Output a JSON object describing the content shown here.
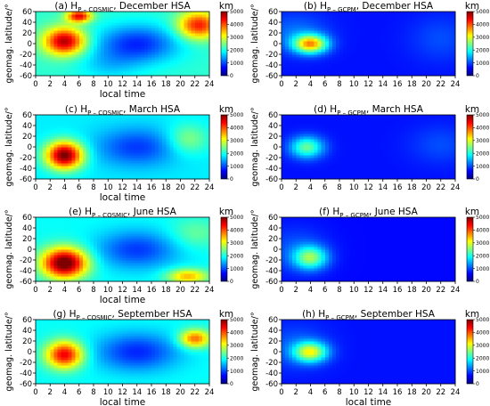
{
  "colors": {
    "jet": [
      "#00007f",
      "#0000ff",
      "#007fff",
      "#00ffff",
      "#7fff7f",
      "#ffff00",
      "#ff7f00",
      "#ff0000",
      "#7f0000"
    ]
  },
  "chart_data": [
    {
      "type": "heatmap",
      "title": "(a) H",
      "subscript": "P – COSMIC",
      "title_rest": ", December HSA",
      "xlabel": "local time",
      "ylabel": "geomag. latitude/°",
      "colorbar_label": "km",
      "x_ticks": [
        0,
        2,
        4,
        6,
        8,
        10,
        12,
        14,
        16,
        18,
        20,
        22,
        24
      ],
      "y_ticks": [
        -60,
        -40,
        -20,
        0,
        20,
        40,
        60
      ],
      "colorbar_ticks": [
        0,
        1000,
        2000,
        3000,
        4000,
        5000
      ],
      "xlim": [
        0,
        24
      ],
      "ylim": [
        -60,
        60
      ],
      "clim": [
        0,
        5000
      ],
      "field": {
        "base": 2100,
        "blobs": [
          {
            "x": 4,
            "y": 5,
            "sx": 2.0,
            "sy": 18,
            "amp": 2700
          },
          {
            "x": 6,
            "y": 52,
            "sx": 1.2,
            "sy": 8,
            "amp": 2400
          },
          {
            "x": 22.5,
            "y": 35,
            "sx": 2.0,
            "sy": 18,
            "amp": 2200
          },
          {
            "x": 14,
            "y": 0,
            "sx": 4.0,
            "sy": 25,
            "amp": -1300
          },
          {
            "x": 10,
            "y": -40,
            "sx": 3.0,
            "sy": 20,
            "amp": -400
          }
        ]
      }
    },
    {
      "type": "heatmap",
      "title": "(b) H",
      "subscript": "P – GCPM",
      "title_rest": ", December HSA",
      "xlabel": "",
      "ylabel": "",
      "colorbar_label": "km",
      "x_ticks": [
        0,
        2,
        4,
        6,
        8,
        10,
        12,
        14,
        16,
        18,
        20,
        22,
        24
      ],
      "y_ticks": [
        -60,
        -40,
        -20,
        0,
        20,
        40,
        60
      ],
      "colorbar_ticks": [
        0,
        1000,
        2000,
        3000,
        4000,
        5000
      ],
      "xlim": [
        0,
        24
      ],
      "ylim": [
        -60,
        60
      ],
      "clim": [
        0,
        5000
      ],
      "field": {
        "base": 700,
        "blobs": [
          {
            "x": 4,
            "y": 0,
            "sx": 1.6,
            "sy": 12,
            "amp": 2800
          },
          {
            "x": 2,
            "y": 20,
            "sx": 3.0,
            "sy": 25,
            "amp": 500
          },
          {
            "x": 22,
            "y": 10,
            "sx": 3.0,
            "sy": 30,
            "amp": 300
          }
        ]
      }
    },
    {
      "type": "heatmap",
      "title": "(c) H",
      "subscript": "P – COSMIC",
      "title_rest": ", March HSA",
      "xlabel": "local time",
      "ylabel": "geomag. latitude/°",
      "colorbar_label": "km",
      "x_ticks": [
        0,
        2,
        4,
        6,
        8,
        10,
        12,
        14,
        16,
        18,
        20,
        22,
        24
      ],
      "y_ticks": [
        -60,
        -40,
        -20,
        0,
        20,
        40,
        60
      ],
      "colorbar_ticks": [
        0,
        1000,
        2000,
        3000,
        4000,
        5000
      ],
      "xlim": [
        0,
        24
      ],
      "ylim": [
        -60,
        60
      ],
      "clim": [
        0,
        5000
      ],
      "field": {
        "base": 1800,
        "blobs": [
          {
            "x": 4,
            "y": -15,
            "sx": 1.8,
            "sy": 18,
            "amp": 3300
          },
          {
            "x": 21,
            "y": 15,
            "sx": 2.0,
            "sy": 20,
            "amp": 800
          },
          {
            "x": 14,
            "y": 0,
            "sx": 4.0,
            "sy": 25,
            "amp": -900
          }
        ]
      }
    },
    {
      "type": "heatmap",
      "title": "(d) H",
      "subscript": "P – GCPM",
      "title_rest": ", March HSA",
      "xlabel": "",
      "ylabel": "",
      "colorbar_label": "km",
      "x_ticks": [
        0,
        2,
        4,
        6,
        8,
        10,
        12,
        14,
        16,
        18,
        20,
        22,
        24
      ],
      "y_ticks": [
        -60,
        -40,
        -20,
        0,
        20,
        40,
        60
      ],
      "colorbar_ticks": [
        0,
        1000,
        2000,
        3000,
        4000,
        5000
      ],
      "xlim": [
        0,
        24
      ],
      "ylim": [
        -60,
        60
      ],
      "clim": [
        0,
        5000
      ],
      "field": {
        "base": 700,
        "blobs": [
          {
            "x": 3.5,
            "y": 0,
            "sx": 1.6,
            "sy": 14,
            "amp": 1700
          },
          {
            "x": 22,
            "y": 5,
            "sx": 3.0,
            "sy": 25,
            "amp": 300
          }
        ]
      }
    },
    {
      "type": "heatmap",
      "title": "(e) H",
      "subscript": "P – COSMIC",
      "title_rest": ", June HSA",
      "xlabel": "local time",
      "ylabel": "geomag. latitude/°",
      "colorbar_label": "km",
      "x_ticks": [
        0,
        2,
        4,
        6,
        8,
        10,
        12,
        14,
        16,
        18,
        20,
        22,
        24
      ],
      "y_ticks": [
        -60,
        -40,
        -20,
        0,
        20,
        40,
        60
      ],
      "colorbar_ticks": [
        0,
        1000,
        2000,
        3000,
        4000,
        5000
      ],
      "xlim": [
        0,
        24
      ],
      "ylim": [
        -60,
        60
      ],
      "clim": [
        0,
        5000
      ],
      "field": {
        "base": 1900,
        "blobs": [
          {
            "x": 4,
            "y": -25,
            "sx": 2.2,
            "sy": 20,
            "amp": 3400
          },
          {
            "x": 21,
            "y": -50,
            "sx": 2.0,
            "sy": 10,
            "amp": 1600
          },
          {
            "x": 22,
            "y": 30,
            "sx": 2.5,
            "sy": 20,
            "amp": 500
          },
          {
            "x": 14,
            "y": 0,
            "sx": 4.0,
            "sy": 25,
            "amp": -1000
          }
        ]
      }
    },
    {
      "type": "heatmap",
      "title": "(f) H",
      "subscript": "P – GCPM",
      "title_rest": ", June HSA",
      "xlabel": "",
      "ylabel": "",
      "colorbar_label": "km",
      "x_ticks": [
        0,
        2,
        4,
        6,
        8,
        10,
        12,
        14,
        16,
        18,
        20,
        22,
        24
      ],
      "y_ticks": [
        -60,
        -40,
        -20,
        0,
        20,
        40,
        60
      ],
      "colorbar_ticks": [
        0,
        1000,
        2000,
        3000,
        4000,
        5000
      ],
      "xlim": [
        0,
        24
      ],
      "ylim": [
        -60,
        60
      ],
      "clim": [
        0,
        5000
      ],
      "field": {
        "base": 650,
        "blobs": [
          {
            "x": 4,
            "y": -15,
            "sx": 1.6,
            "sy": 15,
            "amp": 1800
          },
          {
            "x": 2,
            "y": 0,
            "sx": 3.0,
            "sy": 30,
            "amp": 400
          }
        ]
      }
    },
    {
      "type": "heatmap",
      "title": "(g) H",
      "subscript": "P – COSMIC",
      "title_rest": ", September HSA",
      "xlabel": "local time",
      "ylabel": "geomag. latitude/°",
      "colorbar_label": "km",
      "x_ticks": [
        0,
        2,
        4,
        6,
        8,
        10,
        12,
        14,
        16,
        18,
        20,
        22,
        24
      ],
      "y_ticks": [
        -60,
        -40,
        -20,
        0,
        20,
        40,
        60
      ],
      "colorbar_ticks": [
        0,
        1000,
        2000,
        3000,
        4000,
        5000
      ],
      "xlim": [
        0,
        24
      ],
      "ylim": [
        -60,
        60
      ],
      "clim": [
        0,
        5000
      ],
      "field": {
        "base": 1900,
        "blobs": [
          {
            "x": 4,
            "y": -5,
            "sx": 1.8,
            "sy": 18,
            "amp": 2600
          },
          {
            "x": 22,
            "y": 25,
            "sx": 1.5,
            "sy": 12,
            "amp": 2000
          },
          {
            "x": 14,
            "y": 0,
            "sx": 4.0,
            "sy": 25,
            "amp": -1100
          }
        ]
      }
    },
    {
      "type": "heatmap",
      "title": "(h) H",
      "subscript": "P – GCPM",
      "title_rest": ", September HSA",
      "xlabel": "local time",
      "ylabel": "",
      "colorbar_label": "km",
      "x_ticks": [
        0,
        2,
        4,
        6,
        8,
        10,
        12,
        14,
        16,
        18,
        20,
        22,
        24
      ],
      "y_ticks": [
        -60,
        -40,
        -20,
        0,
        20,
        40,
        60
      ],
      "colorbar_ticks": [
        0,
        1000,
        2000,
        3000,
        4000,
        5000
      ],
      "xlim": [
        0,
        24
      ],
      "ylim": [
        -60,
        60
      ],
      "clim": [
        0,
        5000
      ],
      "field": {
        "base": 700,
        "blobs": [
          {
            "x": 4,
            "y": 0,
            "sx": 1.6,
            "sy": 13,
            "amp": 2200
          },
          {
            "x": 2,
            "y": 10,
            "sx": 3.0,
            "sy": 28,
            "amp": 400
          }
        ]
      }
    }
  ]
}
